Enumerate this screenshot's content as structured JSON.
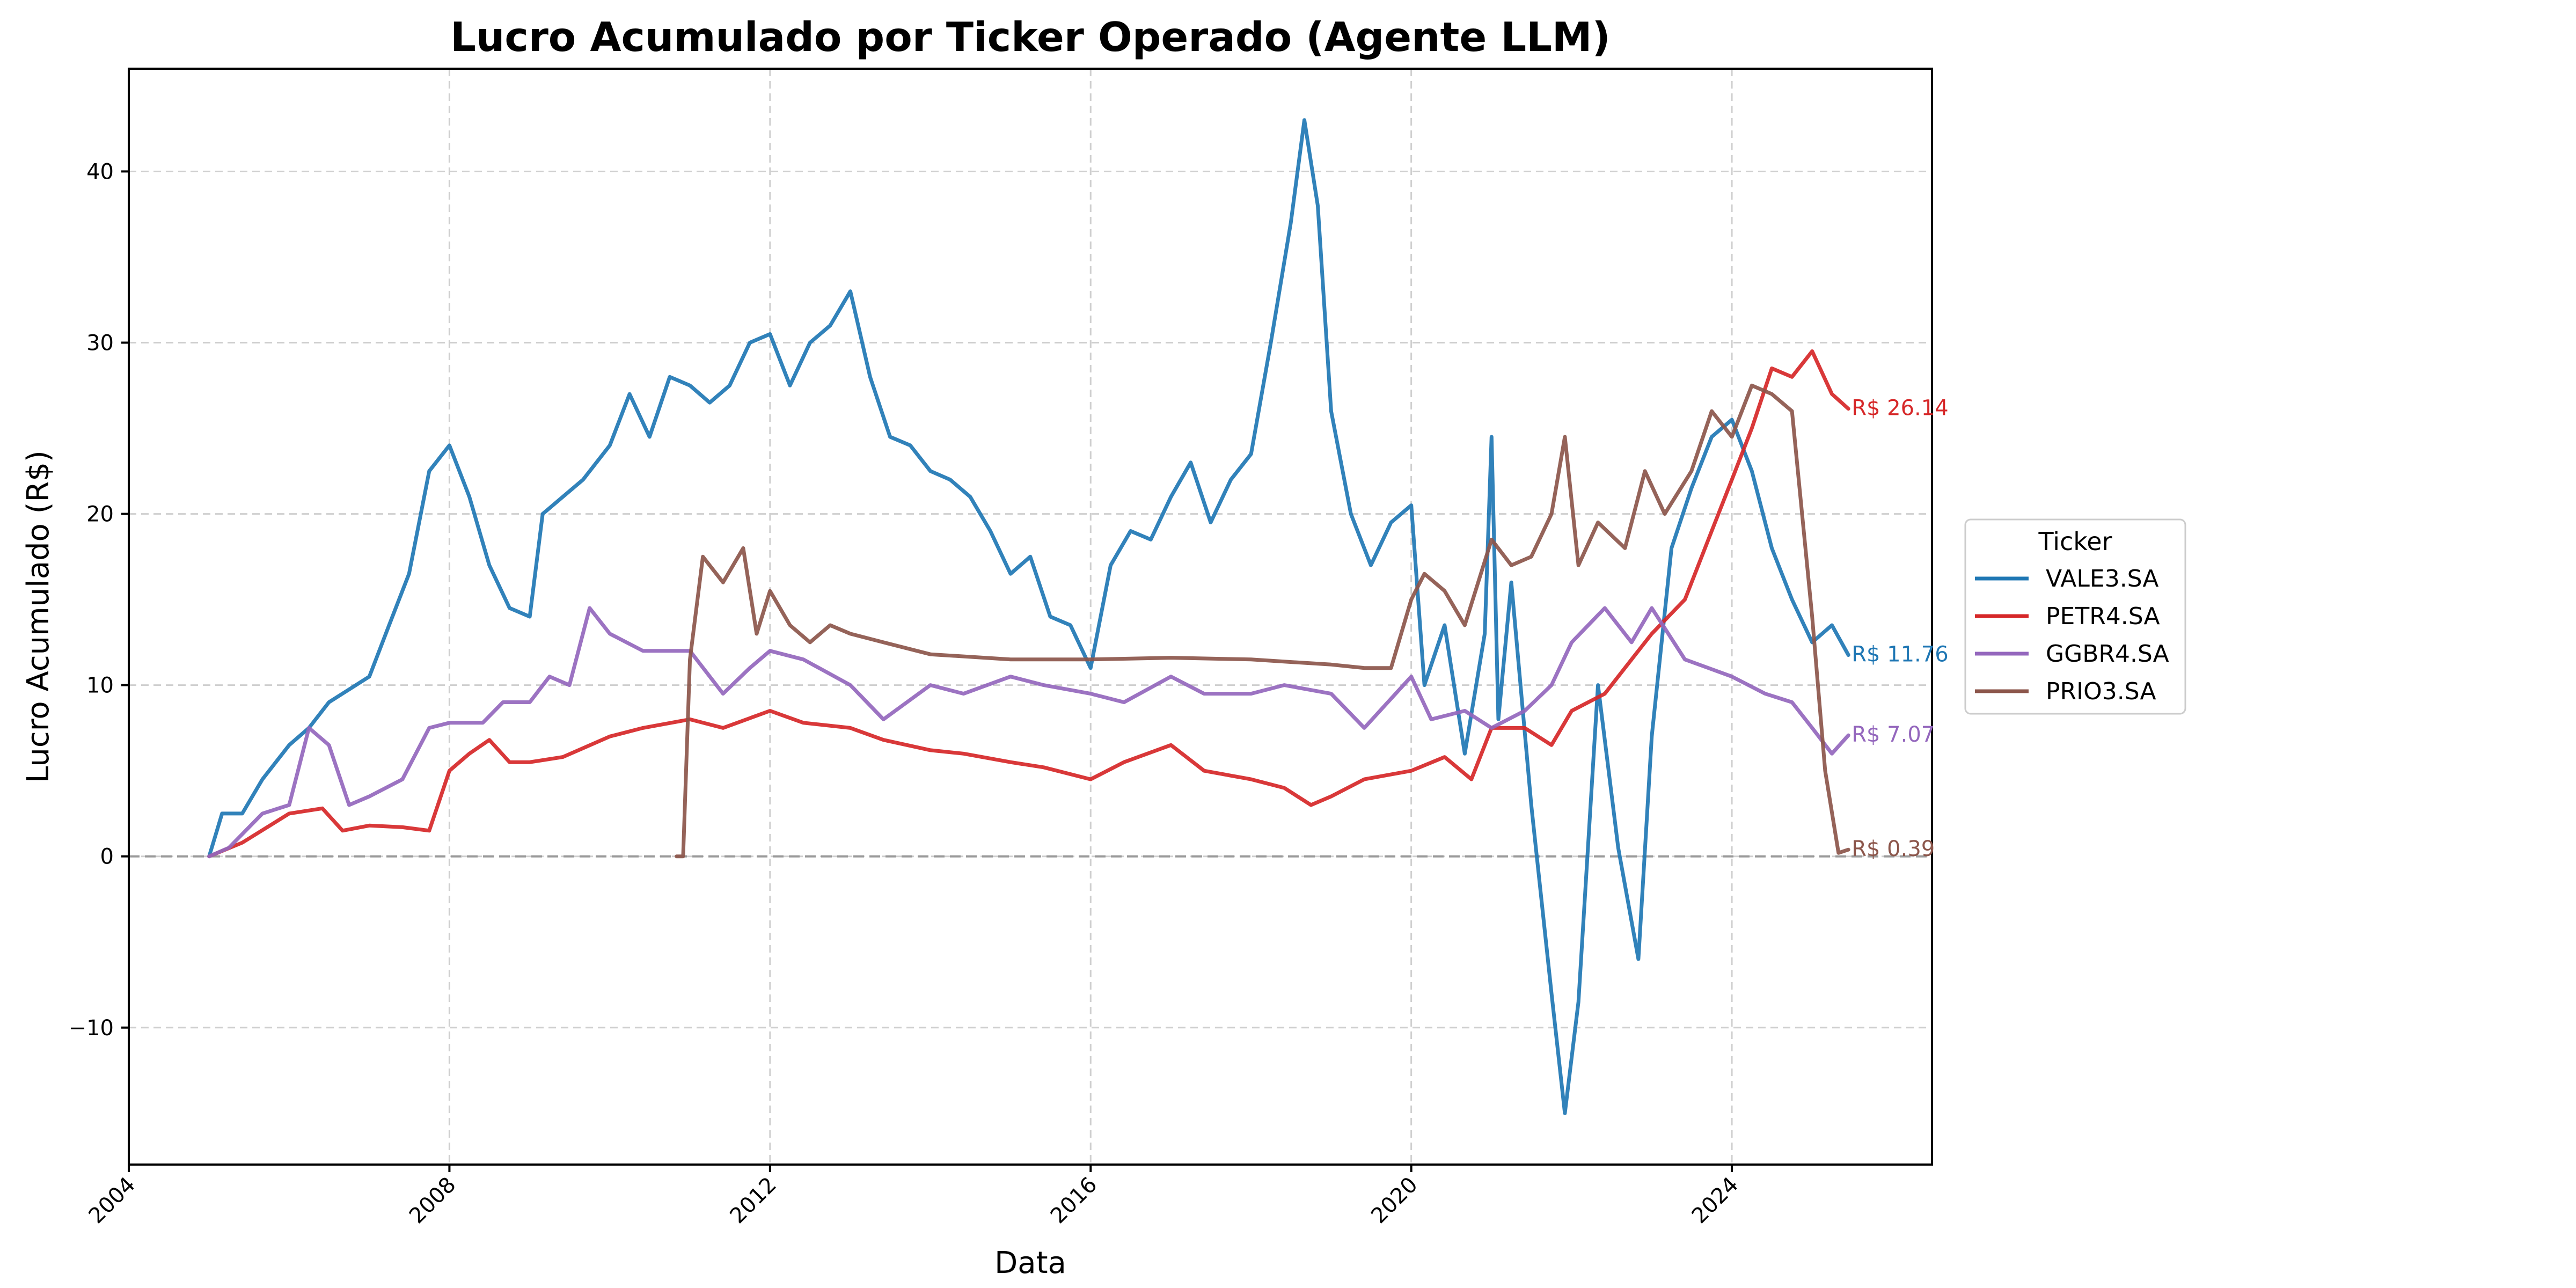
{
  "chart_data": {
    "type": "line",
    "title": "Lucro Acumulado por Ticker Operado (Agente LLM)",
    "xlabel": "Data",
    "ylabel": "Lucro Acumulado (R$)",
    "x_type": "date",
    "xlim": [
      "2004-01-01",
      "2026-07-01"
    ],
    "ylim": [
      -18,
      46
    ],
    "x_ticks": [
      {
        "value": "2004-01-01",
        "label": "2004"
      },
      {
        "value": "2008-01-01",
        "label": "2008"
      },
      {
        "value": "2012-01-01",
        "label": "2012"
      },
      {
        "value": "2016-01-01",
        "label": "2016"
      },
      {
        "value": "2020-01-01",
        "label": "2020"
      },
      {
        "value": "2024-01-01",
        "label": "2024"
      }
    ],
    "y_ticks": [
      {
        "value": -10,
        "label": "−10"
      },
      {
        "value": 0,
        "label": "0"
      },
      {
        "value": 10,
        "label": "10"
      },
      {
        "value": 20,
        "label": "20"
      },
      {
        "value": 30,
        "label": "30"
      },
      {
        "value": 40,
        "label": "40"
      }
    ],
    "grid": true,
    "zero_line": true,
    "legend": {
      "title": "Ticker",
      "placement": "center-right outside"
    },
    "series": [
      {
        "name": "VALE3.SA",
        "color": "#1f77b4",
        "end_label": "R$ 11.76",
        "points": [
          [
            "2005-01-01",
            0
          ],
          [
            "2005-03-01",
            2.5
          ],
          [
            "2005-06-01",
            2.5
          ],
          [
            "2005-09-01",
            4.5
          ],
          [
            "2006-01-01",
            6.5
          ],
          [
            "2006-04-01",
            7.5
          ],
          [
            "2006-07-01",
            9.0
          ],
          [
            "2007-01-01",
            10.5
          ],
          [
            "2007-04-01",
            13.5
          ],
          [
            "2007-07-01",
            16.5
          ],
          [
            "2007-10-01",
            22.5
          ],
          [
            "2008-01-01",
            24.0
          ],
          [
            "2008-04-01",
            21.0
          ],
          [
            "2008-07-01",
            17.0
          ],
          [
            "2008-10-01",
            14.5
          ],
          [
            "2009-01-01",
            14.0
          ],
          [
            "2009-03-01",
            20.0
          ],
          [
            "2009-06-01",
            21.0
          ],
          [
            "2009-09-01",
            22.0
          ],
          [
            "2010-01-01",
            24.0
          ],
          [
            "2010-04-01",
            27.0
          ],
          [
            "2010-07-01",
            24.5
          ],
          [
            "2010-10-01",
            28.0
          ],
          [
            "2011-01-01",
            27.5
          ],
          [
            "2011-04-01",
            26.5
          ],
          [
            "2011-07-01",
            27.5
          ],
          [
            "2011-10-01",
            30.0
          ],
          [
            "2012-01-01",
            30.5
          ],
          [
            "2012-04-01",
            27.5
          ],
          [
            "2012-07-01",
            30.0
          ],
          [
            "2012-10-01",
            31.0
          ],
          [
            "2013-01-01",
            33.0
          ],
          [
            "2013-04-01",
            28.0
          ],
          [
            "2013-07-01",
            24.5
          ],
          [
            "2013-10-01",
            24.0
          ],
          [
            "2014-01-01",
            22.5
          ],
          [
            "2014-04-01",
            22.0
          ],
          [
            "2014-07-01",
            21.0
          ],
          [
            "2014-10-01",
            19.0
          ],
          [
            "2015-01-01",
            16.5
          ],
          [
            "2015-04-01",
            17.5
          ],
          [
            "2015-07-01",
            14.0
          ],
          [
            "2015-10-01",
            13.5
          ],
          [
            "2016-01-01",
            11.0
          ],
          [
            "2016-04-01",
            17.0
          ],
          [
            "2016-07-01",
            19.0
          ],
          [
            "2016-10-01",
            18.5
          ],
          [
            "2017-01-01",
            21.0
          ],
          [
            "2017-04-01",
            23.0
          ],
          [
            "2017-07-01",
            19.5
          ],
          [
            "2017-10-01",
            22.0
          ],
          [
            "2018-01-01",
            23.5
          ],
          [
            "2018-04-01",
            30.0
          ],
          [
            "2018-07-01",
            37.0
          ],
          [
            "2018-09-01",
            43.0
          ],
          [
            "2018-11-01",
            38.0
          ],
          [
            "2019-01-01",
            26.0
          ],
          [
            "2019-04-01",
            20.0
          ],
          [
            "2019-07-01",
            17.0
          ],
          [
            "2019-10-01",
            19.5
          ],
          [
            "2020-01-01",
            20.5
          ],
          [
            "2020-03-01",
            10.0
          ],
          [
            "2020-06-01",
            13.5
          ],
          [
            "2020-09-01",
            6.0
          ],
          [
            "2020-12-01",
            13.0
          ],
          [
            "2021-01-01",
            24.5
          ],
          [
            "2021-02-01",
            8.0
          ],
          [
            "2021-04-01",
            16.0
          ],
          [
            "2021-07-01",
            3.0
          ],
          [
            "2021-10-01",
            -8.0
          ],
          [
            "2021-12-01",
            -15.0
          ],
          [
            "2022-02-01",
            -8.5
          ],
          [
            "2022-05-01",
            10.0
          ],
          [
            "2022-08-01",
            0.5
          ],
          [
            "2022-11-01",
            -6.0
          ],
          [
            "2023-01-01",
            7.0
          ],
          [
            "2023-04-01",
            18.0
          ],
          [
            "2023-07-01",
            21.5
          ],
          [
            "2023-10-01",
            24.5
          ],
          [
            "2024-01-01",
            25.5
          ],
          [
            "2024-04-01",
            22.5
          ],
          [
            "2024-07-01",
            18.0
          ],
          [
            "2024-10-01",
            15.0
          ],
          [
            "2025-01-01",
            12.5
          ],
          [
            "2025-04-01",
            13.5
          ],
          [
            "2025-06-15",
            11.76
          ]
        ]
      },
      {
        "name": "PETR4.SA",
        "color": "#d62728",
        "end_label": "R$ 26.14",
        "points": [
          [
            "2005-01-01",
            0
          ],
          [
            "2005-06-01",
            0.8
          ],
          [
            "2006-01-01",
            2.5
          ],
          [
            "2006-06-01",
            2.8
          ],
          [
            "2006-09-01",
            1.5
          ],
          [
            "2007-01-01",
            1.8
          ],
          [
            "2007-06-01",
            1.7
          ],
          [
            "2007-10-01",
            1.5
          ],
          [
            "2008-01-01",
            5.0
          ],
          [
            "2008-04-01",
            6.0
          ],
          [
            "2008-07-01",
            6.8
          ],
          [
            "2008-10-01",
            5.5
          ],
          [
            "2009-01-01",
            5.5
          ],
          [
            "2009-06-01",
            5.8
          ],
          [
            "2010-01-01",
            7.0
          ],
          [
            "2010-06-01",
            7.5
          ],
          [
            "2011-01-01",
            8.0
          ],
          [
            "2011-06-01",
            7.5
          ],
          [
            "2012-01-01",
            8.5
          ],
          [
            "2012-06-01",
            7.8
          ],
          [
            "2013-01-01",
            7.5
          ],
          [
            "2013-06-01",
            6.8
          ],
          [
            "2014-01-01",
            6.2
          ],
          [
            "2014-06-01",
            6.0
          ],
          [
            "2015-01-01",
            5.5
          ],
          [
            "2015-06-01",
            5.2
          ],
          [
            "2016-01-01",
            4.5
          ],
          [
            "2016-06-01",
            5.5
          ],
          [
            "2017-01-01",
            6.5
          ],
          [
            "2017-06-01",
            5.0
          ],
          [
            "2018-01-01",
            4.5
          ],
          [
            "2018-06-01",
            4.0
          ],
          [
            "2018-10-01",
            3.0
          ],
          [
            "2019-01-01",
            3.5
          ],
          [
            "2019-06-01",
            4.5
          ],
          [
            "2020-01-01",
            5.0
          ],
          [
            "2020-06-01",
            5.8
          ],
          [
            "2020-10-01",
            4.5
          ],
          [
            "2021-01-01",
            7.5
          ],
          [
            "2021-06-01",
            7.5
          ],
          [
            "2021-10-01",
            6.5
          ],
          [
            "2022-01-01",
            8.5
          ],
          [
            "2022-06-01",
            9.5
          ],
          [
            "2022-10-01",
            11.5
          ],
          [
            "2023-01-01",
            13.0
          ],
          [
            "2023-06-01",
            15.0
          ],
          [
            "2023-10-01",
            19.0
          ],
          [
            "2024-01-01",
            22.0
          ],
          [
            "2024-04-01",
            25.0
          ],
          [
            "2024-07-01",
            28.5
          ],
          [
            "2024-10-01",
            28.0
          ],
          [
            "2025-01-01",
            29.5
          ],
          [
            "2025-04-01",
            27.0
          ],
          [
            "2025-06-15",
            26.14
          ]
        ]
      },
      {
        "name": "GGBR4.SA",
        "color": "#9467bd",
        "end_label": "R$ 7.07",
        "points": [
          [
            "2005-01-01",
            0
          ],
          [
            "2005-04-01",
            0.5
          ],
          [
            "2005-09-01",
            2.5
          ],
          [
            "2006-01-01",
            3.0
          ],
          [
            "2006-04-01",
            7.5
          ],
          [
            "2006-07-01",
            6.5
          ],
          [
            "2006-10-01",
            3.0
          ],
          [
            "2007-01-01",
            3.5
          ],
          [
            "2007-06-01",
            4.5
          ],
          [
            "2007-10-01",
            7.5
          ],
          [
            "2008-01-01",
            7.8
          ],
          [
            "2008-06-01",
            7.8
          ],
          [
            "2008-09-01",
            9.0
          ],
          [
            "2009-01-01",
            9.0
          ],
          [
            "2009-04-01",
            10.5
          ],
          [
            "2009-07-01",
            10.0
          ],
          [
            "2009-10-01",
            14.5
          ],
          [
            "2010-01-01",
            13.0
          ],
          [
            "2010-06-01",
            12.0
          ],
          [
            "2011-01-01",
            12.0
          ],
          [
            "2011-06-01",
            9.5
          ],
          [
            "2011-10-01",
            11.0
          ],
          [
            "2012-01-01",
            12.0
          ],
          [
            "2012-06-01",
            11.5
          ],
          [
            "2013-01-01",
            10.0
          ],
          [
            "2013-06-01",
            8.0
          ],
          [
            "2014-01-01",
            10.0
          ],
          [
            "2014-06-01",
            9.5
          ],
          [
            "2015-01-01",
            10.5
          ],
          [
            "2015-06-01",
            10.0
          ],
          [
            "2016-01-01",
            9.5
          ],
          [
            "2016-06-01",
            9.0
          ],
          [
            "2017-01-01",
            10.5
          ],
          [
            "2017-06-01",
            9.5
          ],
          [
            "2018-01-01",
            9.5
          ],
          [
            "2018-06-01",
            10.0
          ],
          [
            "2019-01-01",
            9.5
          ],
          [
            "2019-06-01",
            7.5
          ],
          [
            "2020-01-01",
            10.5
          ],
          [
            "2020-04-01",
            8.0
          ],
          [
            "2020-09-01",
            8.5
          ],
          [
            "2021-01-01",
            7.5
          ],
          [
            "2021-06-01",
            8.5
          ],
          [
            "2021-10-01",
            10.0
          ],
          [
            "2022-01-01",
            12.5
          ],
          [
            "2022-06-01",
            14.5
          ],
          [
            "2022-10-01",
            12.5
          ],
          [
            "2023-01-01",
            14.5
          ],
          [
            "2023-06-01",
            11.5
          ],
          [
            "2024-01-01",
            10.5
          ],
          [
            "2024-06-01",
            9.5
          ],
          [
            "2024-10-01",
            9.0
          ],
          [
            "2025-01-01",
            7.5
          ],
          [
            "2025-04-01",
            6.0
          ],
          [
            "2025-06-15",
            7.07
          ]
        ]
      },
      {
        "name": "PRIO3.SA",
        "color": "#8c564b",
        "end_label": "R$ 0.39",
        "points": [
          [
            "2010-11-01",
            0
          ],
          [
            "2010-12-01",
            0
          ],
          [
            "2011-01-01",
            11.5
          ],
          [
            "2011-03-01",
            17.5
          ],
          [
            "2011-06-01",
            16.0
          ],
          [
            "2011-09-01",
            18.0
          ],
          [
            "2011-11-01",
            13.0
          ],
          [
            "2012-01-01",
            15.5
          ],
          [
            "2012-04-01",
            13.5
          ],
          [
            "2012-07-01",
            12.5
          ],
          [
            "2012-10-01",
            13.5
          ],
          [
            "2013-01-01",
            13.0
          ],
          [
            "2013-06-01",
            12.5
          ],
          [
            "2014-01-01",
            11.8
          ],
          [
            "2015-01-01",
            11.5
          ],
          [
            "2016-01-01",
            11.5
          ],
          [
            "2017-01-01",
            11.6
          ],
          [
            "2018-01-01",
            11.5
          ],
          [
            "2019-01-01",
            11.2
          ],
          [
            "2019-06-01",
            11.0
          ],
          [
            "2019-10-01",
            11.0
          ],
          [
            "2020-01-01",
            15.0
          ],
          [
            "2020-03-01",
            16.5
          ],
          [
            "2020-06-01",
            15.5
          ],
          [
            "2020-09-01",
            13.5
          ],
          [
            "2021-01-01",
            18.5
          ],
          [
            "2021-04-01",
            17.0
          ],
          [
            "2021-07-01",
            17.5
          ],
          [
            "2021-10-01",
            20.0
          ],
          [
            "2021-12-01",
            24.5
          ],
          [
            "2022-02-01",
            17.0
          ],
          [
            "2022-05-01",
            19.5
          ],
          [
            "2022-09-01",
            18.0
          ],
          [
            "2022-12-01",
            22.5
          ],
          [
            "2023-03-01",
            20.0
          ],
          [
            "2023-07-01",
            22.5
          ],
          [
            "2023-10-01",
            26.0
          ],
          [
            "2024-01-01",
            24.5
          ],
          [
            "2024-04-01",
            27.5
          ],
          [
            "2024-07-01",
            27.0
          ],
          [
            "2024-10-01",
            26.0
          ],
          [
            "2025-01-01",
            14.0
          ],
          [
            "2025-03-01",
            5.0
          ],
          [
            "2025-05-01",
            0.2
          ],
          [
            "2025-06-15",
            0.39
          ]
        ]
      }
    ]
  }
}
